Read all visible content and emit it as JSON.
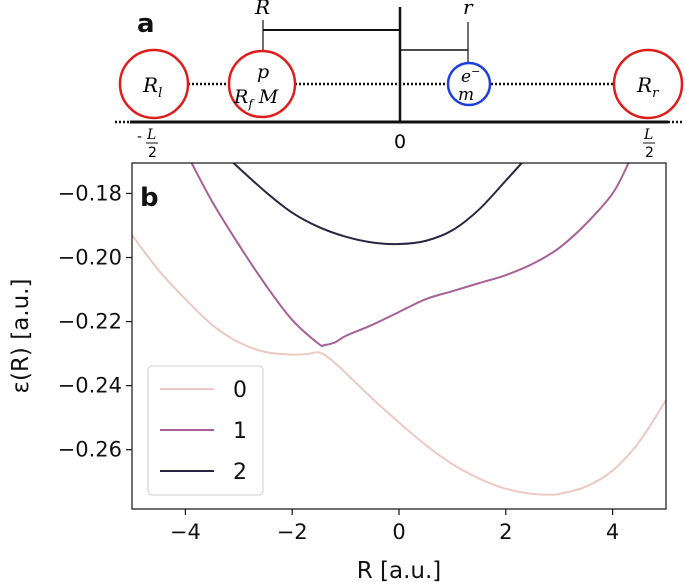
{
  "panel_a": {
    "label": "a",
    "R_label": "R",
    "r_label": "r",
    "left_ion_label": "R",
    "left_ion_sub": "l",
    "right_ion_label": "R",
    "right_ion_sub": "r",
    "proton_top": "p",
    "proton_bottom_R": "R",
    "proton_bottom_sub": "f",
    "proton_bottom_M": "M",
    "electron_top": "e",
    "electron_sup": "−",
    "electron_bottom": "m",
    "zero_label": "0",
    "left_end_sign": "-",
    "left_end_num": "L",
    "left_end_den": "2",
    "right_end_num": "L",
    "right_end_den": "2",
    "ion_color": "#dd1c1c",
    "electron_color": "#1f3fdd"
  },
  "panel_b": {
    "label": "b"
  },
  "chart_data": {
    "type": "line",
    "xlabel": "R [a.u.]",
    "ylabel": "ε(R) [a.u.]",
    "xlim": [
      -5,
      5
    ],
    "ylim": [
      -0.2785,
      -0.1705
    ],
    "xticks": [
      -4,
      -2,
      0,
      2,
      4
    ],
    "xtick_labels": [
      "−4",
      "−2",
      "0",
      "2",
      "4"
    ],
    "yticks": [
      -0.18,
      -0.2,
      -0.22,
      -0.24,
      -0.26
    ],
    "ytick_labels": [
      "−0.18",
      "−0.20",
      "−0.22",
      "−0.24",
      "−0.26"
    ],
    "legend_position": "lower-left",
    "series": [
      {
        "name": "0",
        "color": "#ecc9c3",
        "x": [
          -5,
          -4.5,
          -4,
          -3.5,
          -3,
          -2.5,
          -2,
          -1.7,
          -1.5,
          -1.3,
          -1,
          -0.5,
          0,
          0.5,
          1,
          1.5,
          2,
          2.5,
          2.8,
          3,
          3.5,
          4,
          4.5,
          5
        ],
        "y": [
          -0.193,
          -0.204,
          -0.213,
          -0.221,
          -0.2265,
          -0.2295,
          -0.2303,
          -0.2301,
          -0.2296,
          -0.2315,
          -0.236,
          -0.244,
          -0.2515,
          -0.2585,
          -0.2645,
          -0.269,
          -0.2722,
          -0.2738,
          -0.274,
          -0.2738,
          -0.2715,
          -0.2665,
          -0.2575,
          -0.2445
        ]
      },
      {
        "name": "1",
        "color": "#a66196",
        "x": [
          -3.9,
          -3.5,
          -3,
          -2.5,
          -2,
          -1.5,
          -1.4,
          -1.2,
          -1,
          -0.5,
          0,
          0.5,
          1,
          1.5,
          2,
          2.5,
          3,
          3.5,
          4,
          4.3
        ],
        "y": [
          -0.17,
          -0.1825,
          -0.196,
          -0.2085,
          -0.2195,
          -0.227,
          -0.2273,
          -0.2265,
          -0.2245,
          -0.221,
          -0.217,
          -0.213,
          -0.2105,
          -0.208,
          -0.2055,
          -0.202,
          -0.197,
          -0.1895,
          -0.18,
          -0.1705
        ]
      },
      {
        "name": "2",
        "color": "#2a2440",
        "x": [
          -3.1,
          -2.5,
          -2,
          -1.5,
          -1,
          -0.5,
          0,
          0.5,
          1,
          1.5,
          2,
          2.3
        ],
        "y": [
          -0.1705,
          -0.1795,
          -0.186,
          -0.1905,
          -0.1935,
          -0.1953,
          -0.1958,
          -0.1948,
          -0.1915,
          -0.185,
          -0.176,
          -0.1705
        ]
      }
    ]
  }
}
